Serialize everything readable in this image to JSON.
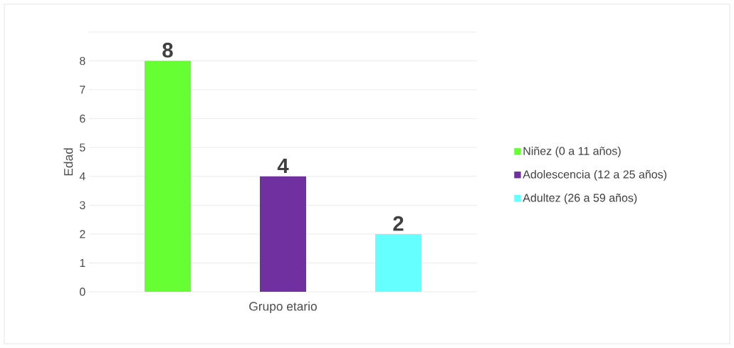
{
  "chart_data": {
    "type": "bar",
    "xlabel": "Grupo etario",
    "ylabel": "Edad",
    "categories": [
      null
    ],
    "series": [
      {
        "name": "Niñez (0 a 11 años)",
        "color": "#66ff33",
        "values": [
          8
        ]
      },
      {
        "name": "Adolescencia (12 a 25 años)",
        "color": "#7030a0",
        "values": [
          4
        ]
      },
      {
        "name": "Adultez (26 a 59 años)",
        "color": "#66ffff",
        "values": [
          2
        ]
      }
    ],
    "ylim": [
      0,
      9
    ],
    "yticks": [
      0,
      1,
      2,
      3,
      4,
      5,
      6,
      7,
      8,
      {
        "value": 9,
        "label": null
      }
    ],
    "grid": "y",
    "legend": "right",
    "data_labels": true
  }
}
